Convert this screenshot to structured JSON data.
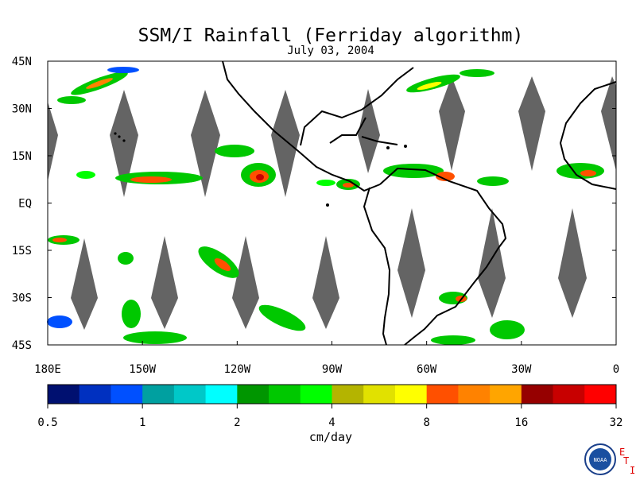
{
  "title": "SSM/I Rainfall (Ferriday algorithm)",
  "date": "July 03, 2004",
  "map": {
    "lon_range": [
      -180,
      0
    ],
    "lat_range": [
      -45,
      45
    ],
    "lat_ticks": [
      {
        "label": "45N",
        "value": 45
      },
      {
        "label": "30N",
        "value": 30
      },
      {
        "label": "15N",
        "value": 15
      },
      {
        "label": "EQ",
        "value": 0
      },
      {
        "label": "15S",
        "value": -15
      },
      {
        "label": "30S",
        "value": -30
      },
      {
        "label": "45S",
        "value": -45
      }
    ],
    "lon_ticks": [
      {
        "label": "180E",
        "value": -180
      },
      {
        "label": "150W",
        "value": -150
      },
      {
        "label": "120W",
        "value": -120
      },
      {
        "label": "90W",
        "value": -90
      },
      {
        "label": "60W",
        "value": -60
      },
      {
        "label": "30W",
        "value": -30
      },
      {
        "label": "0",
        "value": 0
      }
    ],
    "no_data_color": "#646464",
    "coastline_color": "#000000"
  },
  "colorbar": {
    "unit_label": "cm/day",
    "colors": [
      "#001070",
      "#0030c0",
      "#0050ff",
      "#00a0a0",
      "#00c8c8",
      "#00ffff",
      "#009600",
      "#00c800",
      "#00ff00",
      "#b4b400",
      "#e1e100",
      "#ffff00",
      "#ff5000",
      "#ff8200",
      "#ffa500",
      "#960000",
      "#c80000",
      "#ff0000"
    ],
    "tick_labels": [
      "0.5",
      "1",
      "2",
      "4",
      "8",
      "16",
      "32"
    ]
  },
  "logo": {
    "text": "NOAA",
    "side_letters": [
      "E",
      "T",
      "I"
    ]
  }
}
